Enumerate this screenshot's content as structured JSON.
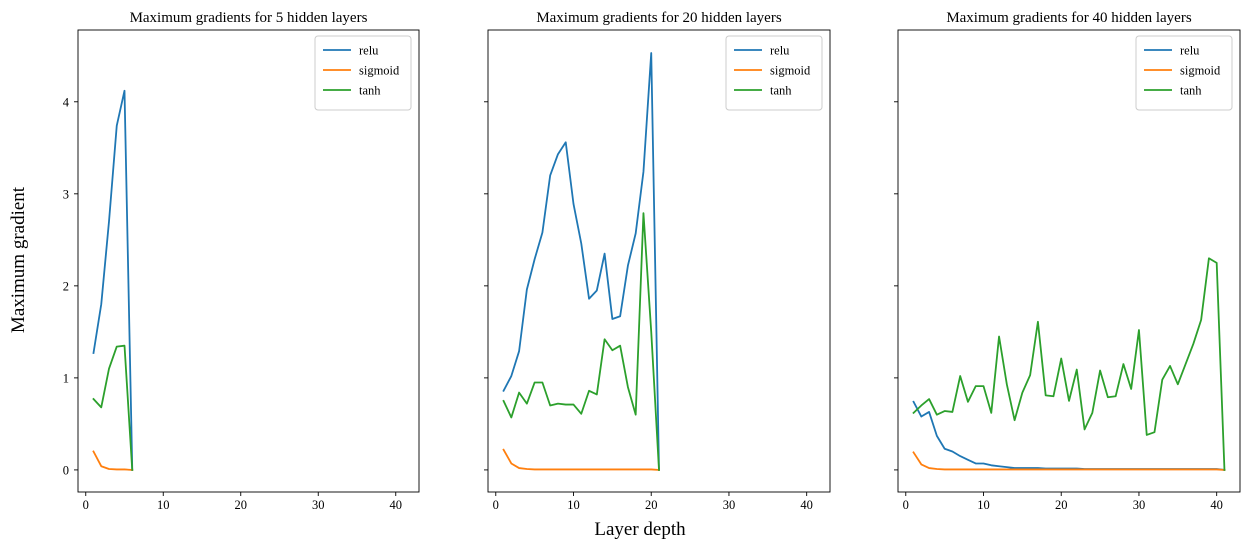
{
  "figure": {
    "xlabel": "Layer depth",
    "ylabel": "Maximum gradient"
  },
  "colors": {
    "relu": "#1f77b4",
    "sigmoid": "#ff7f0e",
    "tanh": "#2ca02c"
  },
  "chart_data": [
    {
      "type": "line",
      "title": "Maximum gradients for 5 hidden layers",
      "xlim": [
        -1,
        43
      ],
      "ylim": [
        -0.24,
        4.78
      ],
      "xticks": [
        0,
        10,
        20,
        30,
        40
      ],
      "yticks": [
        0,
        1,
        2,
        3,
        4
      ],
      "legend_position": "top-right",
      "show_yticklabels": true,
      "series": [
        {
          "name": "relu",
          "x": [
            1,
            2,
            3,
            4,
            5,
            6
          ],
          "y": [
            1.27,
            1.8,
            2.7,
            3.74,
            4.12,
            0.0
          ]
        },
        {
          "name": "sigmoid",
          "x": [
            1,
            2,
            3,
            4,
            5,
            6
          ],
          "y": [
            0.2,
            0.04,
            0.01,
            0.005,
            0.005,
            0.0
          ]
        },
        {
          "name": "tanh",
          "x": [
            1,
            2,
            3,
            4,
            5,
            6
          ],
          "y": [
            0.77,
            0.68,
            1.1,
            1.34,
            1.35,
            0.0
          ]
        }
      ]
    },
    {
      "type": "line",
      "title": "Maximum gradients for 20 hidden layers",
      "xlim": [
        -1,
        43
      ],
      "ylim": [
        -0.24,
        4.78
      ],
      "xticks": [
        0,
        10,
        20,
        30,
        40
      ],
      "yticks": [
        0,
        1,
        2,
        3,
        4
      ],
      "legend_position": "top-right",
      "show_yticklabels": false,
      "series": [
        {
          "name": "relu",
          "x": [
            1,
            2,
            3,
            4,
            5,
            6,
            7,
            8,
            9,
            10,
            11,
            12,
            13,
            14,
            15,
            16,
            17,
            18,
            19,
            20,
            21
          ],
          "y": [
            0.86,
            1.02,
            1.29,
            1.96,
            2.29,
            2.58,
            3.2,
            3.43,
            3.56,
            2.89,
            2.46,
            1.86,
            1.95,
            2.35,
            1.64,
            1.67,
            2.22,
            2.57,
            3.24,
            4.53,
            0.0
          ]
        },
        {
          "name": "sigmoid",
          "x": [
            1,
            2,
            3,
            4,
            5,
            6,
            7,
            8,
            9,
            10,
            11,
            12,
            13,
            14,
            15,
            16,
            17,
            18,
            19,
            20,
            21
          ],
          "y": [
            0.22,
            0.07,
            0.02,
            0.01,
            0.005,
            0.005,
            0.005,
            0.005,
            0.005,
            0.005,
            0.005,
            0.005,
            0.005,
            0.005,
            0.005,
            0.005,
            0.005,
            0.005,
            0.005,
            0.005,
            0.0
          ]
        },
        {
          "name": "tanh",
          "x": [
            1,
            2,
            3,
            4,
            5,
            6,
            7,
            8,
            9,
            10,
            11,
            12,
            13,
            14,
            15,
            16,
            17,
            18,
            19,
            20,
            21
          ],
          "y": [
            0.75,
            0.57,
            0.84,
            0.72,
            0.95,
            0.95,
            0.7,
            0.72,
            0.71,
            0.71,
            0.61,
            0.86,
            0.82,
            1.42,
            1.3,
            1.35,
            0.9,
            0.6,
            2.79,
            1.5,
            0.0
          ]
        }
      ]
    },
    {
      "type": "line",
      "title": "Maximum gradients for 40 hidden layers",
      "xlim": [
        -1,
        43
      ],
      "ylim": [
        -0.24,
        4.78
      ],
      "xticks": [
        0,
        10,
        20,
        30,
        40
      ],
      "yticks": [
        0,
        1,
        2,
        3,
        4
      ],
      "legend_position": "top-right",
      "show_yticklabels": false,
      "series": [
        {
          "name": "relu",
          "x": [
            1,
            2,
            3,
            4,
            5,
            6,
            7,
            8,
            9,
            10,
            11,
            12,
            13,
            14,
            15,
            16,
            17,
            18,
            19,
            20,
            21,
            22,
            23,
            24,
            25,
            26,
            27,
            28,
            29,
            30,
            31,
            32,
            33,
            34,
            35,
            36,
            37,
            38,
            39,
            40,
            41
          ],
          "y": [
            0.74,
            0.58,
            0.63,
            0.37,
            0.23,
            0.2,
            0.15,
            0.11,
            0.07,
            0.07,
            0.05,
            0.04,
            0.03,
            0.02,
            0.02,
            0.02,
            0.02,
            0.015,
            0.015,
            0.015,
            0.015,
            0.015,
            0.01,
            0.01,
            0.01,
            0.01,
            0.01,
            0.01,
            0.01,
            0.01,
            0.01,
            0.01,
            0.01,
            0.01,
            0.01,
            0.01,
            0.01,
            0.01,
            0.01,
            0.01,
            0.0
          ]
        },
        {
          "name": "sigmoid",
          "x": [
            1,
            2,
            3,
            4,
            5,
            6,
            7,
            8,
            9,
            10,
            11,
            12,
            13,
            14,
            15,
            16,
            17,
            18,
            19,
            20,
            21,
            22,
            23,
            24,
            25,
            26,
            27,
            28,
            29,
            30,
            31,
            32,
            33,
            34,
            35,
            36,
            37,
            38,
            39,
            40,
            41
          ],
          "y": [
            0.19,
            0.06,
            0.02,
            0.01,
            0.005,
            0.005,
            0.005,
            0.005,
            0.005,
            0.005,
            0.005,
            0.005,
            0.005,
            0.005,
            0.005,
            0.005,
            0.005,
            0.005,
            0.005,
            0.005,
            0.005,
            0.005,
            0.005,
            0.005,
            0.005,
            0.005,
            0.005,
            0.005,
            0.005,
            0.005,
            0.005,
            0.005,
            0.005,
            0.005,
            0.005,
            0.005,
            0.005,
            0.005,
            0.005,
            0.005,
            0.0
          ]
        },
        {
          "name": "tanh",
          "x": [
            1,
            2,
            3,
            4,
            5,
            6,
            7,
            8,
            9,
            10,
            11,
            12,
            13,
            14,
            15,
            16,
            17,
            18,
            19,
            20,
            21,
            22,
            23,
            24,
            25,
            26,
            27,
            28,
            29,
            30,
            31,
            32,
            33,
            34,
            35,
            36,
            37,
            38,
            39,
            40,
            41
          ],
          "y": [
            0.62,
            0.7,
            0.77,
            0.6,
            0.64,
            0.63,
            1.02,
            0.74,
            0.91,
            0.91,
            0.62,
            1.45,
            0.93,
            0.54,
            0.84,
            1.03,
            1.61,
            0.81,
            0.8,
            1.21,
            0.75,
            1.09,
            0.44,
            0.62,
            1.08,
            0.79,
            0.8,
            1.15,
            0.88,
            1.52,
            0.38,
            0.41,
            0.98,
            1.13,
            0.93,
            1.15,
            1.37,
            1.63,
            2.3,
            2.25,
            0.0
          ]
        }
      ]
    }
  ]
}
